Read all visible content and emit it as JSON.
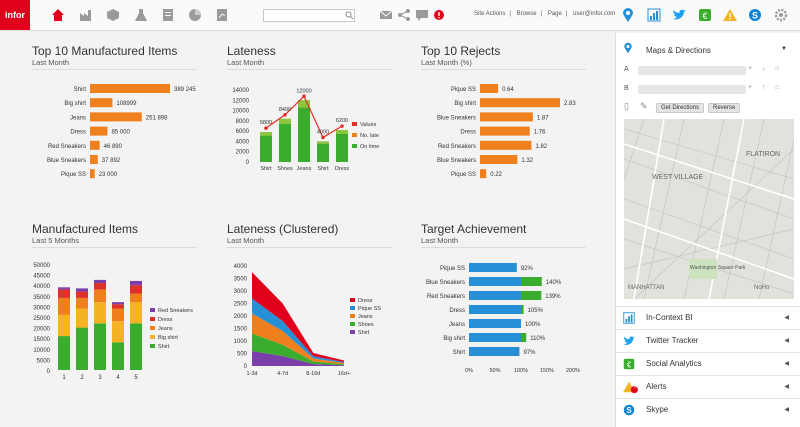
{
  "topbar": {
    "logo": "infor",
    "search_placeholder": "",
    "links": [
      "Site Actions",
      "Browse",
      "Page",
      "user@infor.com"
    ]
  },
  "panels": {
    "top10": {
      "title": "Top 10 Manufactured Items",
      "subtitle": "Last Month"
    },
    "lateness": {
      "title": "Lateness",
      "subtitle": "Last Month"
    },
    "rejects": {
      "title": "Top 10 Rejects",
      "subtitle": "Last Month (%)"
    },
    "manufactured": {
      "title": "Manufactured Items",
      "subtitle": "Last 5 Months"
    },
    "clustered": {
      "title": "Lateness (Clustered)",
      "subtitle": "Last Month"
    },
    "target": {
      "title": "Target Achievement",
      "subtitle": "Last Month"
    }
  },
  "chart_data": [
    {
      "id": "top10",
      "type": "bar",
      "orientation": "horizontal",
      "categories": [
        "Shirt",
        "Big shirt",
        "Jeans",
        "Dress",
        "Red Sneakers",
        "Blue Sneakers",
        "Pique SS"
      ],
      "values": [
        389245,
        108999,
        251898,
        85000,
        46890,
        37892,
        23000
      ],
      "labels": [
        "389 245",
        "108999",
        "251 898",
        "85 000",
        "46 890",
        "37 892",
        "23 000"
      ],
      "max": 389245,
      "color": "#f07f1e"
    },
    {
      "id": "lateness",
      "type": "bar",
      "categories": [
        "Shirt",
        "Shoes",
        "Jeans",
        "Shirt",
        "Dress"
      ],
      "values": [
        5800,
        8400,
        12000,
        4000,
        6200
      ],
      "labels": [
        "5800",
        "8400",
        "12000",
        "4000",
        "6200"
      ],
      "ymax": 14000,
      "yticks": [
        "14000",
        "12000",
        "10000",
        "8000",
        "6000",
        "4000",
        "2000",
        "0"
      ],
      "series_names": [
        "Values",
        "No. late",
        "On time"
      ],
      "colors": [
        "#e0302a",
        "#f07f1e",
        "#3aad2e"
      ]
    },
    {
      "id": "rejects",
      "type": "bar",
      "orientation": "horizontal",
      "categories": [
        "Pique SS",
        "Big shirt",
        "Blue Sneakers",
        "Dress",
        "Red Sneakers",
        "Blue Sneakers",
        "Pique SS"
      ],
      "values": [
        0.64,
        2.83,
        1.87,
        1.76,
        1.82,
        1.32,
        0.22
      ],
      "labels": [
        "0.64",
        "2.83",
        "1.87",
        "1.76",
        "1.82",
        "1.32",
        "0.22"
      ],
      "max": 2.83,
      "color": "#f07f1e"
    },
    {
      "id": "manufactured",
      "type": "bar",
      "stacked": true,
      "categories": [
        "1",
        "2",
        "3",
        "4",
        "5"
      ],
      "yticks": [
        "50000",
        "45000",
        "40000",
        "35000",
        "30000",
        "25000",
        "20000",
        "15000",
        "10000",
        "5000",
        "0"
      ],
      "ymax": 50000,
      "series": [
        {
          "name": "Shirt",
          "color": "#3aad2e",
          "values": [
            16000,
            20000,
            22000,
            13000,
            22000
          ]
        },
        {
          "name": "Big shirt",
          "color": "#f5b323",
          "values": [
            10000,
            9000,
            10000,
            10000,
            10000
          ]
        },
        {
          "name": "Jeans",
          "color": "#f07f1e",
          "values": [
            8000,
            5000,
            6000,
            6000,
            4000
          ]
        },
        {
          "name": "Dress",
          "color": "#e0302a",
          "values": [
            4000,
            3000,
            3000,
            2000,
            4000
          ]
        },
        {
          "name": "Red Sneakers",
          "color": "#7a3fa8",
          "values": [
            1000,
            1500,
            1500,
            1000,
            2000
          ]
        }
      ]
    },
    {
      "id": "clustered",
      "type": "area",
      "stacked": true,
      "categories": [
        "1-3d",
        "4-7d",
        "8-16d",
        "16d+"
      ],
      "yticks": [
        "4000",
        "3500",
        "3000",
        "2500",
        "2000",
        "1500",
        "1000",
        "500",
        "0"
      ],
      "ymax": 4000,
      "series": [
        {
          "name": "Shirt",
          "color": "#7a3fa8",
          "values": [
            600,
            400,
            80,
            30
          ]
        },
        {
          "name": "Shoes",
          "color": "#3aad2e",
          "values": [
            700,
            450,
            100,
            40
          ]
        },
        {
          "name": "Jeans",
          "color": "#f07f1e",
          "values": [
            800,
            550,
            120,
            50
          ]
        },
        {
          "name": "Pique SS",
          "color": "#2690d6",
          "values": [
            600,
            400,
            90,
            40
          ]
        },
        {
          "name": "Dress",
          "color": "#e0001b",
          "values": [
            1050,
            700,
            130,
            60
          ]
        }
      ]
    },
    {
      "id": "target",
      "type": "bar",
      "orientation": "horizontal",
      "categories": [
        "Pique SS",
        "Blue Sneakers",
        "Red Sneakers",
        "Dress",
        "Jeans",
        "Big shirt",
        "Shirt"
      ],
      "values": [
        92,
        140,
        139,
        105,
        100,
        110,
        97
      ],
      "labels": [
        "92%",
        "140%",
        "139%",
        "105%",
        "100%",
        "110%",
        "97%"
      ],
      "xticks": [
        "0%",
        "50%",
        "100%",
        "150%",
        "200%"
      ],
      "xmax": 200,
      "colors": {
        "base": "#2690d6",
        "over": "#3aad2e"
      }
    }
  ],
  "sidebar": {
    "maps_title": "Maps & Directions",
    "field_a": "A",
    "field_b": "B",
    "get_directions": "Get Directions",
    "reverse": "Reverse",
    "map_labels": [
      "FLATIRON",
      "WEST VILLAGE",
      "Washington Square Park",
      "MANHATTAN",
      "NoHo"
    ],
    "items": [
      {
        "label": "In-Context BI",
        "icon": "bar-chart-icon",
        "color": "#2690d6"
      },
      {
        "label": "Twitter Tracker",
        "icon": "twitter-icon",
        "color": "#1da1f2"
      },
      {
        "label": "Social Analytics",
        "icon": "social-analytics-icon",
        "color": "#3aad2e"
      },
      {
        "label": "Alerts",
        "icon": "alert-icon",
        "color": "#f5b323",
        "badge": "5"
      },
      {
        "label": "Skype",
        "icon": "skype-icon",
        "color": "#0a84d6"
      }
    ]
  }
}
